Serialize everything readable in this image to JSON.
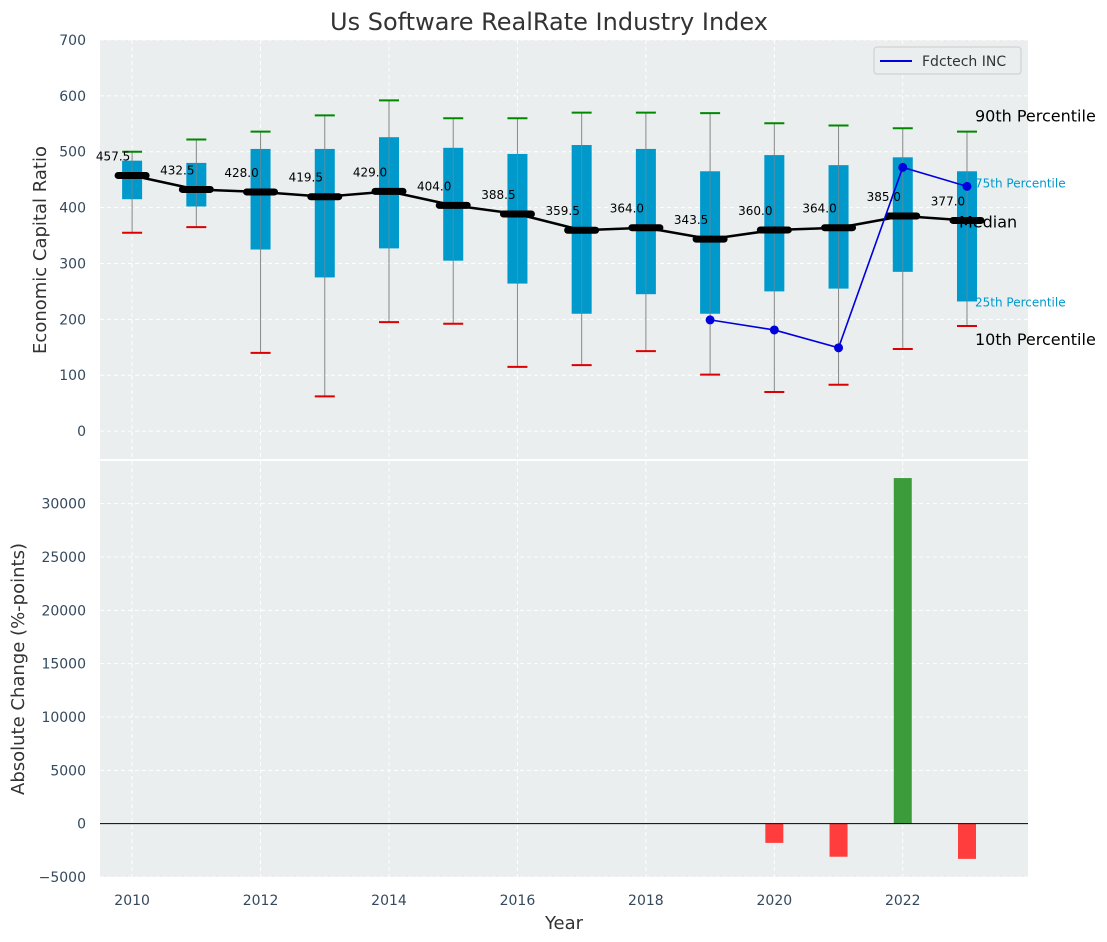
{
  "chart_data": [
    {
      "type": "box",
      "title": "Us Software RealRate Industry Index",
      "ylabel": "Economic Capital Ratio",
      "ylim": [
        -50,
        700
      ],
      "yticks": [
        0,
        100,
        200,
        300,
        400,
        500,
        600,
        700
      ],
      "x": [
        2010,
        2011,
        2012,
        2013,
        2014,
        2015,
        2016,
        2017,
        2018,
        2019,
        2020,
        2021,
        2022,
        2023
      ],
      "p10": [
        355,
        365,
        140,
        62,
        195,
        192,
        115,
        118,
        143,
        101,
        70,
        83,
        147,
        188
      ],
      "p25": [
        415,
        402,
        325,
        275,
        327,
        305,
        264,
        210,
        245,
        210,
        250,
        255,
        285,
        232
      ],
      "median": [
        457.5,
        432.5,
        428.0,
        419.5,
        429.0,
        404.0,
        388.5,
        359.5,
        364.0,
        343.5,
        360.0,
        364.0,
        385.0,
        377.0
      ],
      "p75": [
        484,
        480,
        505,
        505,
        526,
        507,
        496,
        512,
        505,
        465,
        494,
        476,
        490,
        465
      ],
      "p90": [
        500,
        522,
        536,
        565,
        592,
        560,
        560,
        570,
        570,
        569,
        551,
        547,
        542,
        536
      ],
      "median_labels": [
        "457.5",
        "432.5",
        "428.0",
        "419.5",
        "429.0",
        "404.0",
        "388.5",
        "359.5",
        "364.0",
        "343.5",
        "360.0",
        "364.0",
        "385.0",
        "377.0"
      ],
      "company_series": {
        "name": "Fdctech INC",
        "x": [
          2019,
          2020,
          2021,
          2022,
          2023
        ],
        "values": [
          199,
          181,
          149,
          472,
          438
        ]
      },
      "legend": {
        "placement": "top-right",
        "entries": [
          "Fdctech INC"
        ]
      },
      "annotations": {
        "p90": "90th Percentile",
        "p75": "75th Percentile",
        "median": "Median",
        "p25": "25th Percentile",
        "p10": "10th Percentile"
      },
      "grid": true,
      "colors": {
        "box": "#0099cc",
        "median": "#000000",
        "company": "#0000dd",
        "p90_cap": "#008800",
        "p10_cap": "#dd0000",
        "whisker": "#888888"
      }
    },
    {
      "type": "bar",
      "ylabel": "Absolute Change (%-points)",
      "xlabel": "Year",
      "ylim": [
        -5000,
        34000
      ],
      "yticks": [
        -5000,
        0,
        5000,
        10000,
        15000,
        20000,
        25000,
        30000
      ],
      "ytick_labels": [
        "−5000",
        "0",
        "5000",
        "10000",
        "15000",
        "20000",
        "25000",
        "30000"
      ],
      "x": [
        2020,
        2021,
        2022,
        2023
      ],
      "values": [
        -1800,
        -3100,
        32400,
        -3300
      ],
      "xticks": [
        "2010",
        "2012",
        "2014",
        "2016",
        "2018",
        "2020",
        "2022"
      ],
      "grid": true,
      "colors": {
        "positive": "#3c9c3c",
        "negative": "#ff3d3d"
      }
    }
  ]
}
